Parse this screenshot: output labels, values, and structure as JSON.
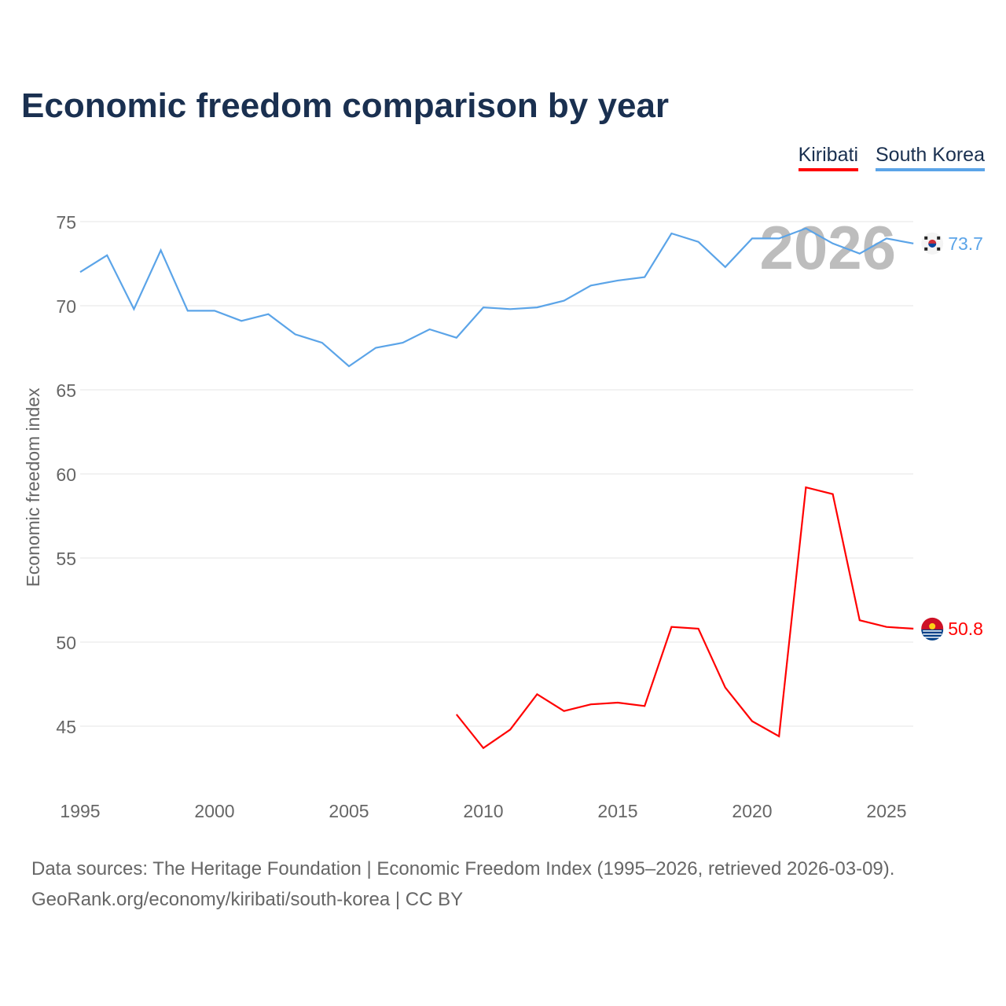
{
  "chart_data": {
    "type": "line",
    "title": "Economic freedom comparison by year",
    "xlabel": "",
    "ylabel": "Economic freedom index",
    "xlim": [
      1995,
      2026
    ],
    "ylim": [
      41,
      77
    ],
    "x_ticks": [
      1995,
      2000,
      2005,
      2010,
      2015,
      2020,
      2025
    ],
    "y_ticks": [
      45,
      50,
      55,
      60,
      65,
      70,
      75
    ],
    "grid": true,
    "legend_position": "top-right",
    "watermark_year": "2026",
    "series": [
      {
        "name": "Kiribati",
        "color": "#ff0000",
        "end_label": "50.8",
        "x": [
          2009,
          2010,
          2011,
          2012,
          2013,
          2014,
          2015,
          2016,
          2017,
          2018,
          2019,
          2020,
          2021,
          2022,
          2023,
          2024,
          2025,
          2026
        ],
        "values": [
          45.7,
          43.7,
          44.8,
          46.9,
          45.9,
          46.3,
          46.4,
          46.2,
          50.9,
          50.8,
          47.3,
          45.3,
          44.4,
          59.2,
          58.8,
          51.3,
          50.9,
          50.8
        ]
      },
      {
        "name": "South Korea",
        "color": "#5ba4e8",
        "end_label": "73.7",
        "x": [
          1995,
          1996,
          1997,
          1998,
          1999,
          2000,
          2001,
          2002,
          2003,
          2004,
          2005,
          2006,
          2007,
          2008,
          2009,
          2010,
          2011,
          2012,
          2013,
          2014,
          2015,
          2016,
          2017,
          2018,
          2019,
          2020,
          2021,
          2022,
          2023,
          2024,
          2025,
          2026
        ],
        "values": [
          72.0,
          73.0,
          69.8,
          73.3,
          69.7,
          69.7,
          69.1,
          69.5,
          68.3,
          67.8,
          66.4,
          67.5,
          67.8,
          68.6,
          68.1,
          69.9,
          69.8,
          69.9,
          70.3,
          71.2,
          71.5,
          71.7,
          74.3,
          73.8,
          72.3,
          74.0,
          74.0,
          74.6,
          73.7,
          73.1,
          74.0,
          73.7
        ]
      }
    ]
  },
  "footer": {
    "line1": "Data sources: The Heritage Foundation | Economic Freedom Index (1995–2026, retrieved 2026-03-09).",
    "line2": "GeoRank.org/economy/kiribati/south-korea | CC BY"
  }
}
